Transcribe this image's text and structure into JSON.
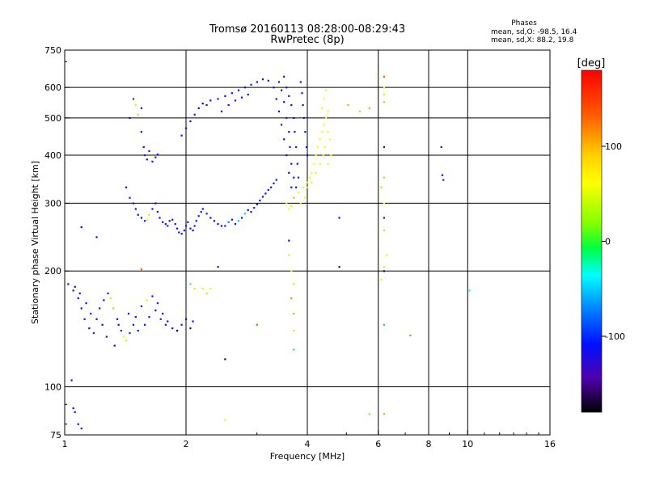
{
  "header": {
    "title_line1": "Tromsø 20160113 08:28:00-08:29:43",
    "title_line2": "RwPretec (8p)"
  },
  "stats": {
    "title": "Phases",
    "line_o": "mean, sd,O: -98.5, 16.4",
    "line_x": "mean, sd,X:  88.2, 19.8"
  },
  "colorbar": {
    "label": "[deg]",
    "tick_labels": [
      "100",
      "0",
      "-100"
    ],
    "tick_values": [
      100,
      0,
      -100
    ],
    "range": [
      -180,
      180
    ],
    "colormap": "rainbow (black-purple-blue-cyan-green-yellow-orange-red)"
  },
  "chart_data": {
    "type": "scatter",
    "xlabel": "Frequency [MHz]",
    "ylabel": "Stationary phase Virtual Height [km]",
    "x_scale": "log",
    "y_scale": "log",
    "xlim": [
      1,
      16
    ],
    "ylim": [
      75,
      750
    ],
    "x_ticks": [
      1,
      2,
      4,
      6,
      8,
      10,
      16
    ],
    "x_tick_labels": [
      "1",
      "2",
      "4",
      "6",
      "8",
      "10",
      "16"
    ],
    "x_gridlines": [
      2,
      4,
      6,
      8,
      10
    ],
    "y_ticks": [
      75,
      100,
      200,
      300,
      400,
      500,
      600,
      750
    ],
    "y_tick_labels": [
      "75",
      "100",
      "200",
      "300",
      "400",
      "500",
      "600",
      "750"
    ],
    "y_gridlines": [
      100,
      200,
      300,
      400,
      500,
      600
    ],
    "grid": true,
    "color_variable": "phase [deg]",
    "points": [
      [
        1.05,
        178,
        -110
      ],
      [
        1.08,
        170,
        -105
      ],
      [
        1.1,
        160,
        -100
      ],
      [
        1.12,
        150,
        -95
      ],
      [
        1.15,
        142,
        -100
      ],
      [
        1.18,
        138,
        -90
      ],
      [
        1.2,
        150,
        -100
      ],
      [
        1.22,
        160,
        -110
      ],
      [
        1.25,
        168,
        -105
      ],
      [
        1.28,
        175,
        -100
      ],
      [
        1.3,
        170,
        60
      ],
      [
        1.32,
        160,
        40
      ],
      [
        1.35,
        150,
        -100
      ],
      [
        1.38,
        140,
        -95
      ],
      [
        1.4,
        135,
        90
      ],
      [
        1.42,
        132,
        70
      ],
      [
        1.45,
        138,
        -90
      ],
      [
        1.48,
        145,
        -100
      ],
      [
        1.5,
        152,
        -105
      ],
      [
        1.55,
        162,
        -100
      ],
      [
        1.6,
        168,
        80
      ],
      [
        1.65,
        172,
        -100
      ],
      [
        1.7,
        165,
        -95
      ],
      [
        1.75,
        155,
        -100
      ],
      [
        1.8,
        148,
        -100
      ],
      [
        1.85,
        142,
        -105
      ],
      [
        1.9,
        140,
        -100
      ],
      [
        1.95,
        145,
        -95
      ],
      [
        2.0,
        150,
        -100
      ],
      [
        2.05,
        142,
        -110
      ],
      [
        2.08,
        148,
        -100
      ],
      [
        1.02,
        185,
        -100
      ],
      [
        1.06,
        182,
        -110
      ],
      [
        1.09,
        175,
        -120
      ],
      [
        1.13,
        165,
        -100
      ],
      [
        1.16,
        155,
        -95
      ],
      [
        1.24,
        145,
        -100
      ],
      [
        1.27,
        135,
        -105
      ],
      [
        1.33,
        128,
        -100
      ],
      [
        1.36,
        145,
        -110
      ],
      [
        1.44,
        155,
        -100
      ],
      [
        1.52,
        140,
        -100
      ],
      [
        1.58,
        145,
        -95
      ],
      [
        1.62,
        152,
        -100
      ],
      [
        1.68,
        158,
        -100
      ],
      [
        1.73,
        150,
        -90
      ],
      [
        1.78,
        145,
        -100
      ],
      [
        1.04,
        104,
        -100
      ],
      [
        1.06,
        86,
        -110
      ],
      [
        1.08,
        80,
        -100
      ],
      [
        1.1,
        78,
        -120
      ],
      [
        1.05,
        88,
        -100
      ],
      [
        1.55,
        460,
        -110
      ],
      [
        1.57,
        420,
        -100
      ],
      [
        1.58,
        400,
        -95
      ],
      [
        1.6,
        390,
        -100
      ],
      [
        1.62,
        410,
        -105
      ],
      [
        1.65,
        385,
        -100
      ],
      [
        1.68,
        395,
        -110
      ],
      [
        1.7,
        402,
        -100
      ],
      [
        1.45,
        500,
        -100
      ],
      [
        1.48,
        560,
        -90
      ],
      [
        1.5,
        540,
        70
      ],
      [
        1.52,
        510,
        50
      ],
      [
        1.55,
        530,
        -100
      ],
      [
        1.42,
        330,
        -100
      ],
      [
        1.45,
        310,
        -95
      ],
      [
        1.48,
        300,
        -100
      ],
      [
        1.5,
        290,
        -100
      ],
      [
        1.52,
        280,
        -105
      ],
      [
        1.55,
        275,
        -100
      ],
      [
        1.58,
        270,
        -95
      ],
      [
        1.6,
        272,
        80
      ],
      [
        1.62,
        280,
        60
      ],
      [
        1.65,
        290,
        -100
      ],
      [
        1.68,
        300,
        -100
      ],
      [
        1.7,
        285,
        -100
      ],
      [
        1.72,
        275,
        -110
      ],
      [
        1.75,
        268,
        -100
      ],
      [
        1.78,
        265,
        -100
      ],
      [
        1.8,
        262,
        -95
      ],
      [
        1.82,
        270,
        -100
      ],
      [
        1.85,
        272,
        -100
      ],
      [
        1.88,
        265,
        -105
      ],
      [
        1.9,
        258,
        -100
      ],
      [
        1.92,
        252,
        -95
      ],
      [
        1.95,
        250,
        -100
      ],
      [
        1.98,
        255,
        -100
      ],
      [
        2.0,
        262,
        -90
      ],
      [
        2.02,
        268,
        -100
      ],
      [
        2.05,
        258,
        -100
      ],
      [
        2.08,
        255,
        -110
      ],
      [
        2.1,
        262,
        -100
      ],
      [
        2.12,
        270,
        -100
      ],
      [
        2.15,
        278,
        -105
      ],
      [
        2.18,
        285,
        -100
      ],
      [
        2.2,
        290,
        -100
      ],
      [
        2.25,
        282,
        -95
      ],
      [
        2.3,
        275,
        -100
      ],
      [
        2.35,
        270,
        -100
      ],
      [
        2.4,
        265,
        -105
      ],
      [
        2.45,
        262,
        -100
      ],
      [
        2.5,
        262,
        -95
      ],
      [
        2.55,
        268,
        -60
      ],
      [
        2.6,
        272,
        -100
      ],
      [
        2.65,
        265,
        -100
      ],
      [
        2.7,
        270,
        -40
      ],
      [
        2.75,
        275,
        -100
      ],
      [
        2.8,
        282,
        -30
      ],
      [
        2.85,
        288,
        -100
      ],
      [
        2.9,
        285,
        -100
      ],
      [
        2.95,
        292,
        -95
      ],
      [
        3.0,
        298,
        -100
      ],
      [
        3.05,
        305,
        -100
      ],
      [
        3.1,
        312,
        -105
      ],
      [
        3.15,
        318,
        -100
      ],
      [
        3.2,
        325,
        -95
      ],
      [
        3.25,
        330,
        -100
      ],
      [
        3.3,
        338,
        -100
      ],
      [
        3.35,
        345,
        -100
      ],
      [
        1.95,
        450,
        -100
      ],
      [
        2.0,
        470,
        -105
      ],
      [
        2.05,
        490,
        -100
      ],
      [
        2.1,
        510,
        -95
      ],
      [
        2.15,
        530,
        -100
      ],
      [
        2.2,
        545,
        -100
      ],
      [
        2.25,
        540,
        -110
      ],
      [
        2.3,
        555,
        -100
      ],
      [
        2.4,
        560,
        -95
      ],
      [
        2.5,
        570,
        -100
      ],
      [
        2.6,
        580,
        -100
      ],
      [
        2.7,
        590,
        -105
      ],
      [
        2.8,
        600,
        -100
      ],
      [
        2.9,
        610,
        -95
      ],
      [
        3.0,
        620,
        -100
      ],
      [
        3.1,
        630,
        -100
      ],
      [
        3.2,
        625,
        -110
      ],
      [
        2.45,
        520,
        -100
      ],
      [
        2.55,
        540,
        -100
      ],
      [
        2.65,
        555,
        -95
      ],
      [
        2.75,
        565,
        -100
      ],
      [
        2.85,
        575,
        -100
      ],
      [
        3.3,
        600,
        -100
      ],
      [
        3.35,
        560,
        -105
      ],
      [
        3.4,
        520,
        -100
      ],
      [
        3.45,
        480,
        -95
      ],
      [
        3.5,
        440,
        -100
      ],
      [
        3.55,
        400,
        -100
      ],
      [
        3.6,
        360,
        -110
      ],
      [
        3.65,
        330,
        -100
      ],
      [
        3.7,
        310,
        -100
      ],
      [
        3.4,
        620,
        -100
      ],
      [
        3.45,
        590,
        -105
      ],
      [
        3.5,
        550,
        -100
      ],
      [
        3.55,
        500,
        -95
      ],
      [
        3.6,
        460,
        -100
      ],
      [
        3.62,
        420,
        -100
      ],
      [
        3.65,
        380,
        -100
      ],
      [
        3.7,
        350,
        -95
      ],
      [
        3.75,
        330,
        -100
      ],
      [
        3.5,
        640,
        -110
      ],
      [
        3.55,
        600,
        -100
      ],
      [
        3.6,
        570,
        -100
      ],
      [
        3.65,
        540,
        -105
      ],
      [
        3.7,
        500,
        -100
      ],
      [
        3.72,
        460,
        -100
      ],
      [
        3.75,
        420,
        -95
      ],
      [
        3.78,
        380,
        -100
      ],
      [
        3.8,
        350,
        -100
      ],
      [
        3.85,
        620,
        -100
      ],
      [
        3.88,
        580,
        -105
      ],
      [
        3.9,
        540,
        -100
      ],
      [
        3.92,
        500,
        -100
      ],
      [
        3.95,
        460,
        -95
      ],
      [
        3.98,
        420,
        -100
      ],
      [
        4.0,
        400,
        -100
      ],
      [
        3.55,
        300,
        80
      ],
      [
        3.6,
        290,
        90
      ],
      [
        3.65,
        295,
        70
      ],
      [
        3.7,
        310,
        80
      ],
      [
        3.8,
        320,
        90
      ],
      [
        3.9,
        330,
        85
      ],
      [
        4.0,
        340,
        90
      ],
      [
        4.05,
        350,
        95
      ],
      [
        4.1,
        360,
        90
      ],
      [
        4.15,
        380,
        100
      ],
      [
        4.2,
        400,
        95
      ],
      [
        4.25,
        420,
        100
      ],
      [
        4.3,
        440,
        95
      ],
      [
        4.35,
        460,
        100
      ],
      [
        4.4,
        480,
        95
      ],
      [
        4.45,
        500,
        100
      ],
      [
        4.5,
        520,
        95
      ],
      [
        4.4,
        560,
        100
      ],
      [
        4.45,
        590,
        90
      ],
      [
        4.42,
        420,
        100
      ],
      [
        4.38,
        400,
        95
      ],
      [
        4.3,
        380,
        90
      ],
      [
        4.2,
        360,
        85
      ],
      [
        4.1,
        340,
        80
      ],
      [
        4.0,
        330,
        75
      ],
      [
        3.95,
        310,
        80
      ],
      [
        3.85,
        300,
        70
      ],
      [
        4.5,
        460,
        100
      ],
      [
        4.55,
        440,
        95
      ],
      [
        4.58,
        400,
        100
      ],
      [
        4.5,
        380,
        90
      ],
      [
        4.35,
        530,
        110
      ],
      [
        5.05,
        540,
        140
      ],
      [
        5.4,
        520,
        50
      ],
      [
        5.7,
        530,
        140
      ],
      [
        6.2,
        640,
        160
      ],
      [
        6.2,
        600,
        100
      ],
      [
        6.2,
        575,
        70
      ],
      [
        6.2,
        550,
        40
      ],
      [
        6.2,
        420,
        -120
      ],
      [
        6.2,
        350,
        40
      ],
      [
        6.1,
        330,
        50
      ],
      [
        6.2,
        300,
        100
      ],
      [
        6.2,
        275,
        -140
      ],
      [
        6.2,
        255,
        130
      ],
      [
        6.3,
        220,
        80
      ],
      [
        6.2,
        205,
        120
      ],
      [
        6.2,
        200,
        -160
      ],
      [
        6.1,
        190,
        80
      ],
      [
        6.2,
        145,
        -40
      ],
      [
        6.2,
        85,
        140
      ],
      [
        4.8,
        275,
        -100
      ],
      [
        4.8,
        205,
        -160
      ],
      [
        3.6,
        240,
        -100
      ],
      [
        3.6,
        220,
        120
      ],
      [
        3.65,
        200,
        110
      ],
      [
        3.7,
        185,
        130
      ],
      [
        3.65,
        170,
        150
      ],
      [
        3.7,
        155,
        140
      ],
      [
        3.7,
        140,
        130
      ],
      [
        3.7,
        125,
        10
      ],
      [
        5.7,
        85,
        40
      ],
      [
        8.6,
        420,
        -120
      ],
      [
        8.65,
        355,
        -100
      ],
      [
        8.7,
        345,
        -90
      ],
      [
        10.1,
        178,
        -20
      ],
      [
        7.2,
        136,
        150
      ],
      [
        1.9,
        140,
        -160
      ],
      [
        2.05,
        185,
        20
      ],
      [
        2.1,
        180,
        70
      ],
      [
        2.2,
        180,
        80
      ],
      [
        2.25,
        175,
        60
      ],
      [
        2.3,
        180,
        90
      ],
      [
        2.4,
        205,
        -120
      ],
      [
        2.5,
        118,
        -160
      ],
      [
        2.5,
        82,
        120
      ],
      [
        3.0,
        145,
        160
      ],
      [
        1.55,
        202,
        160
      ],
      [
        1.2,
        245,
        -100
      ],
      [
        1.1,
        260,
        -100
      ]
    ]
  }
}
